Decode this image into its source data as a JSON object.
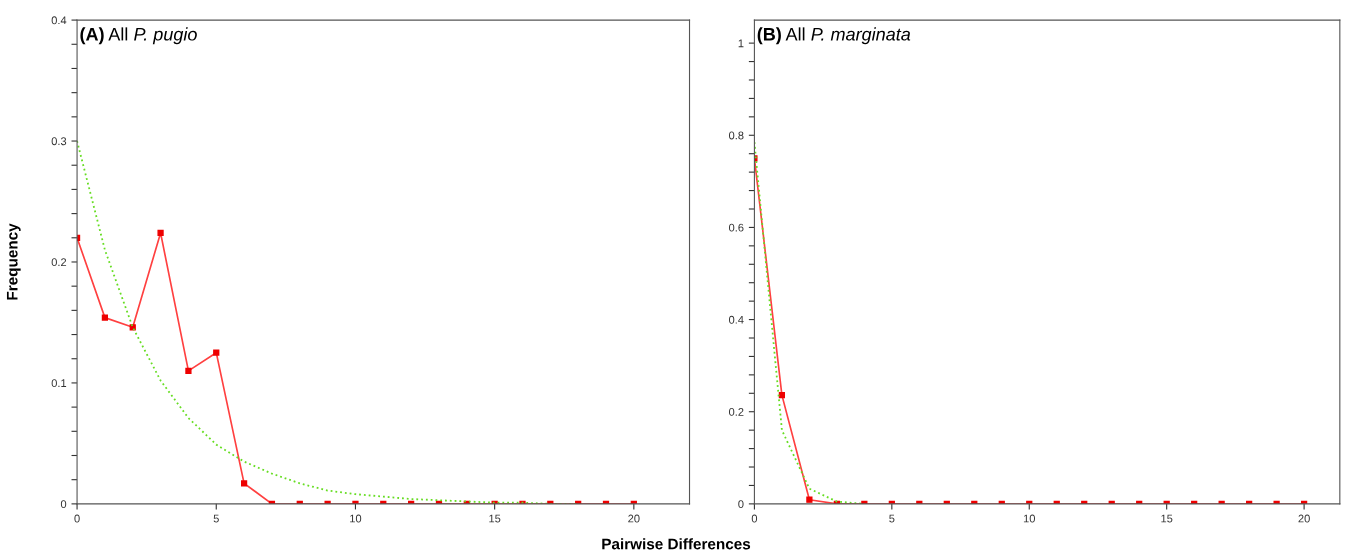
{
  "chart_data": [
    {
      "type": "line",
      "title": "(A) All P. pugio",
      "ylabel": "Frequency",
      "xlabel": "Pairwise Differences",
      "x": [
        0,
        1,
        2,
        3,
        4,
        5,
        6,
        7,
        8,
        9,
        10,
        11,
        12,
        13,
        14,
        15,
        16,
        17,
        18,
        19,
        20
      ],
      "series": [
        {
          "color": "#ff4040",
          "marker": "square",
          "line_style": "solid",
          "values": [
            0.22,
            0.154,
            0.146,
            0.224,
            0.11,
            0.125,
            0.017,
            0,
            0,
            0,
            0,
            0,
            0,
            0,
            0,
            0,
            0,
            0,
            0,
            0,
            0
          ]
        },
        {
          "color": "#66dd22",
          "marker": "none",
          "line_style": "dotted",
          "values": [
            0.3,
            0.21,
            0.146,
            0.102,
            0.071,
            0.049,
            0.035,
            0.025,
            0.017,
            0.011,
            0.008,
            0.006,
            0.004,
            0.003,
            0.002,
            0.001,
            0.001,
            0,
            0,
            null,
            null
          ]
        }
      ],
      "xlim": [
        0,
        22
      ],
      "xticks": [
        0,
        5,
        10,
        15,
        20
      ],
      "ylim": [
        0,
        0.4
      ],
      "yticks": [
        0,
        {
          "value": 0.02,
          "label": null
        },
        {
          "value": 0.04,
          "label": null
        },
        {
          "value": 0.06,
          "label": null
        },
        {
          "value": 0.08,
          "label": null
        },
        0.1,
        {
          "value": 0.12,
          "label": null
        },
        {
          "value": 0.14,
          "label": null
        },
        {
          "value": 0.16,
          "label": null
        },
        {
          "value": 0.18,
          "label": null
        },
        0.2,
        {
          "value": 0.22,
          "label": null
        },
        {
          "value": 0.24,
          "label": null
        },
        {
          "value": 0.26,
          "label": null
        },
        {
          "value": 0.28,
          "label": null
        },
        0.3,
        {
          "value": 0.32,
          "label": null
        },
        {
          "value": 0.34,
          "label": null
        },
        {
          "value": 0.36,
          "label": null
        },
        {
          "value": 0.38,
          "label": null
        },
        0.4
      ],
      "grid": false,
      "legend": false
    },
    {
      "type": "line",
      "title": "(B) All P. marginata",
      "x": [
        0,
        1,
        2,
        3,
        4,
        5,
        6,
        7,
        8,
        9,
        10,
        11,
        12,
        13,
        14,
        15,
        16,
        17,
        18,
        19,
        20
      ],
      "series": [
        {
          "color": "#ff4040",
          "marker": "square",
          "line_style": "solid",
          "values": [
            0.75,
            0.236,
            0.009,
            0,
            0,
            0,
            0,
            0,
            0,
            0,
            0,
            0,
            0,
            0,
            0,
            0,
            0,
            0,
            0,
            0,
            0
          ]
        },
        {
          "color": "#66dd22",
          "marker": "none",
          "line_style": "dotted",
          "values": [
            0.785,
            0.16,
            0.033,
            0.005,
            0,
            null,
            null,
            null,
            null,
            null,
            null,
            null,
            null,
            null,
            null,
            null,
            null,
            null,
            null,
            null,
            null
          ]
        }
      ],
      "xlim": [
        0,
        21.3
      ],
      "xticks": [
        0,
        5,
        10,
        15,
        20
      ],
      "ylim": [
        0,
        1.05
      ],
      "yticks": [
        0,
        {
          "value": 0.04,
          "label": null
        },
        {
          "value": 0.08,
          "label": null
        },
        {
          "value": 0.12,
          "label": null
        },
        {
          "value": 0.16,
          "label": null
        },
        0.2,
        {
          "value": 0.24,
          "label": null
        },
        {
          "value": 0.28,
          "label": null
        },
        {
          "value": 0.32,
          "label": null
        },
        {
          "value": 0.36,
          "label": null
        },
        0.4,
        {
          "value": 0.44,
          "label": null
        },
        {
          "value": 0.48,
          "label": null
        },
        {
          "value": 0.52,
          "label": null
        },
        {
          "value": 0.56,
          "label": null
        },
        0.6,
        {
          "value": 0.64,
          "label": null
        },
        {
          "value": 0.68,
          "label": null
        },
        {
          "value": 0.72,
          "label": null
        },
        {
          "value": 0.76,
          "label": null
        },
        0.8,
        {
          "value": 0.84,
          "label": null
        },
        {
          "value": 0.88,
          "label": null
        },
        {
          "value": 0.92,
          "label": null
        },
        {
          "value": 0.96,
          "label": null
        },
        1
      ],
      "grid": false,
      "legend": false
    }
  ]
}
